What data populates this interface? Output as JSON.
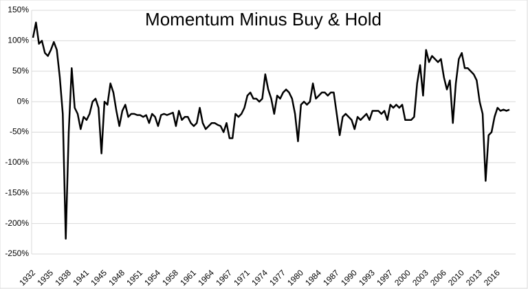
{
  "chart_data": {
    "type": "line",
    "title": "Momentum Minus Buy & Hold",
    "categories": [
      "1932",
      null,
      null,
      null,
      null,
      null,
      "1935",
      null,
      null,
      null,
      null,
      null,
      "1938",
      null,
      null,
      null,
      null,
      null,
      "1941",
      null,
      null,
      null,
      null,
      null,
      "1945",
      null,
      null,
      null,
      null,
      null,
      "1948",
      null,
      null,
      null,
      null,
      null,
      "1951",
      null,
      null,
      null,
      null,
      null,
      "1954",
      null,
      null,
      null,
      null,
      null,
      "1958",
      null,
      null,
      null,
      null,
      null,
      "1961",
      null,
      null,
      null,
      null,
      null,
      "1964",
      null,
      null,
      null,
      null,
      null,
      "1967",
      null,
      null,
      null,
      null,
      null,
      "1971",
      null,
      null,
      null,
      null,
      null,
      "1974",
      null,
      null,
      null,
      null,
      null,
      "1977",
      null,
      null,
      null,
      null,
      null,
      "1980",
      null,
      null,
      null,
      null,
      null,
      "1984",
      null,
      null,
      null,
      null,
      null,
      "1987",
      null,
      null,
      null,
      null,
      null,
      "1990",
      null,
      null,
      null,
      null,
      null,
      "1993",
      null,
      null,
      null,
      null,
      null,
      "1997",
      null,
      null,
      null,
      null,
      null,
      "2000",
      null,
      null,
      null,
      null,
      null,
      "2003",
      null,
      null,
      null,
      null,
      null,
      "2006",
      null,
      null,
      null,
      null,
      null,
      "2010",
      null,
      null,
      null,
      null,
      null,
      "2013",
      null,
      null,
      null,
      null,
      null,
      "2016",
      null,
      null,
      null,
      null
    ],
    "values": [
      105,
      130,
      95,
      100,
      80,
      75,
      85,
      98,
      85,
      40,
      -20,
      -225,
      -50,
      55,
      -10,
      -20,
      -45,
      -25,
      -30,
      -20,
      0,
      5,
      -10,
      -85,
      0,
      -5,
      30,
      15,
      -15,
      -40,
      -15,
      -5,
      -25,
      -20,
      -20,
      -22,
      -22,
      -25,
      -22,
      -35,
      -20,
      -25,
      -40,
      -22,
      -20,
      -22,
      -20,
      -18,
      -40,
      -15,
      -30,
      -25,
      -25,
      -35,
      -40,
      -35,
      -10,
      -35,
      -45,
      -40,
      -35,
      -35,
      -38,
      -40,
      -50,
      -35,
      -60,
      -60,
      -20,
      -25,
      -20,
      -10,
      10,
      15,
      5,
      5,
      0,
      5,
      45,
      20,
      5,
      -20,
      10,
      5,
      15,
      20,
      15,
      5,
      -20,
      -65,
      -5,
      0,
      -5,
      0,
      30,
      5,
      10,
      15,
      15,
      10,
      15,
      15,
      -20,
      -55,
      -25,
      -20,
      -25,
      -30,
      -45,
      -25,
      -30,
      -25,
      -20,
      -30,
      -15,
      -15,
      -15,
      -20,
      -15,
      -30,
      -5,
      -10,
      -5,
      -10,
      -5,
      -30,
      -30,
      -30,
      -25,
      30,
      60,
      10,
      85,
      65,
      75,
      70,
      65,
      70,
      40,
      20,
      35,
      -35,
      30,
      70,
      80,
      55,
      55,
      50,
      45,
      35,
      0,
      -20,
      -130,
      -55,
      -50,
      -25,
      -10,
      -15,
      -13,
      -15,
      -13
    ],
    "color": "#000000",
    "ylim": [
      -250,
      150
    ],
    "yticks": [
      {
        "value": -250,
        "label": "-250%"
      },
      {
        "value": -200,
        "label": "-200%"
      },
      {
        "value": -150,
        "label": "-150%"
      },
      {
        "value": -100,
        "label": "-100%"
      },
      {
        "value": -50,
        "label": "-50%"
      },
      {
        "value": 0,
        "label": "0%"
      },
      {
        "value": 50,
        "label": "50%"
      },
      {
        "value": 100,
        "label": "100%"
      },
      {
        "value": 150,
        "label": "150%"
      }
    ],
    "grid": true
  }
}
